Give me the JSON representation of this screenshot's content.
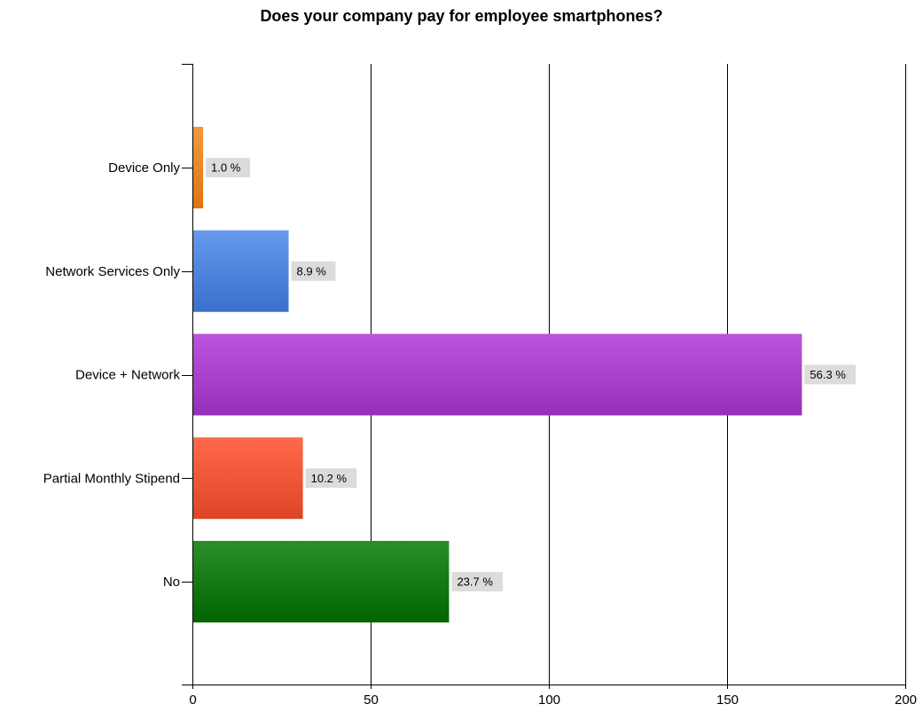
{
  "chart_data": {
    "type": "bar",
    "orientation": "horizontal",
    "title": "Does your company pay for employee smartphones?",
    "xlabel": "",
    "ylabel": "",
    "xlim": [
      0,
      200
    ],
    "x_ticks": [
      0,
      50,
      100,
      150,
      200
    ],
    "grid": "vertical",
    "legend": "none",
    "categories": [
      "Device Only",
      "Network Services Only",
      "Device + Network",
      "Partial Monthly Stipend",
      "No"
    ],
    "values": [
      3,
      27,
      171,
      31,
      72
    ],
    "data_labels": [
      "1.0 %",
      "8.9 %",
      "56.3 %",
      "10.2 %",
      "23.7 %"
    ],
    "colors": [
      {
        "top": "#f29a3c",
        "bottom": "#e07410"
      },
      {
        "top": "#6699ee",
        "bottom": "#3a70cc"
      },
      {
        "top": "#bb55dd",
        "bottom": "#9630b8"
      },
      {
        "top": "#ff6a4a",
        "bottom": "#dd4526"
      },
      {
        "top": "#2a8f2a",
        "bottom": "#006400"
      }
    ],
    "label_background": "#dcdcdc"
  }
}
